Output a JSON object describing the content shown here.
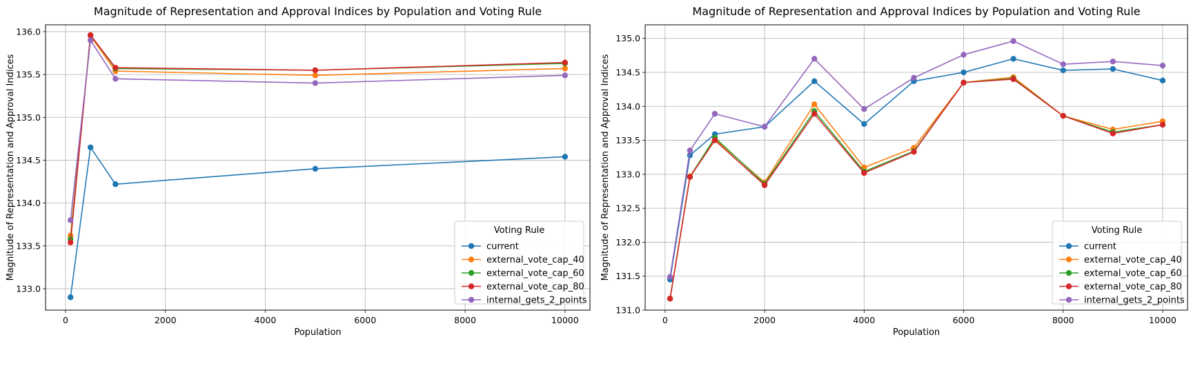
{
  "chart_data": [
    {
      "type": "line",
      "title": "Magnitude of Representation and Approval Indices by Population and Voting Rule",
      "xlabel": "Population",
      "ylabel": "Magnitude of Representation and Approval Indices",
      "xlim": [
        -400,
        10500
      ],
      "ylim": [
        132.75,
        136.08
      ],
      "xticks": [
        0,
        2000,
        4000,
        6000,
        8000,
        10000
      ],
      "yticks": [
        133.0,
        133.5,
        134.0,
        134.5,
        135.0,
        135.5,
        136.0
      ],
      "grid": true,
      "legend": {
        "title": "Voting Rule",
        "position": "lower-right"
      },
      "x": [
        100,
        500,
        1000,
        5000,
        10000
      ],
      "series": [
        {
          "name": "current",
          "color": "#1f77b4",
          "values": [
            132.9,
            134.65,
            134.22,
            134.4,
            134.54
          ]
        },
        {
          "name": "external_vote_cap_40",
          "color": "#ff7f0e",
          "values": [
            133.62,
            135.95,
            135.54,
            135.49,
            135.57
          ]
        },
        {
          "name": "external_vote_cap_60",
          "color": "#2ca02c",
          "values": [
            133.58,
            135.96,
            135.57,
            135.55,
            135.63
          ]
        },
        {
          "name": "external_vote_cap_80",
          "color": "#d62728",
          "values": [
            133.54,
            135.96,
            135.58,
            135.55,
            135.64
          ]
        },
        {
          "name": "internal_gets_2_points",
          "color": "#9467bd",
          "values": [
            133.8,
            135.9,
            135.45,
            135.4,
            135.49
          ]
        }
      ]
    },
    {
      "type": "line",
      "title": "Magnitude of Representation and Approval Indices by Population and Voting Rule",
      "xlabel": "Population",
      "ylabel": "Magnitude of Representation and Approval Indices",
      "xlim": [
        -400,
        10500
      ],
      "ylim": [
        131.0,
        135.2
      ],
      "xticks": [
        0,
        2000,
        4000,
        6000,
        8000,
        10000
      ],
      "yticks": [
        131.0,
        131.5,
        132.0,
        132.5,
        133.0,
        133.5,
        134.0,
        134.5,
        135.0
      ],
      "grid": true,
      "legend": {
        "title": "Voting Rule",
        "position": "lower-right"
      },
      "x": [
        100,
        500,
        1000,
        2000,
        3000,
        4000,
        5000,
        6000,
        7000,
        8000,
        9000,
        10000
      ],
      "series": [
        {
          "name": "current",
          "color": "#1f77b4",
          "values": [
            131.45,
            133.28,
            133.59,
            133.7,
            134.37,
            133.74,
            134.37,
            134.5,
            134.7,
            134.53,
            134.55,
            134.38
          ]
        },
        {
          "name": "external_vote_cap_40",
          "color": "#ff7f0e",
          "values": [
            131.17,
            132.97,
            133.52,
            132.88,
            134.03,
            133.1,
            133.39,
            134.35,
            134.43,
            133.86,
            133.66,
            133.78
          ]
        },
        {
          "name": "external_vote_cap_60",
          "color": "#2ca02c",
          "values": [
            131.17,
            132.96,
            133.54,
            132.86,
            133.93,
            133.04,
            133.34,
            134.35,
            134.41,
            133.86,
            133.62,
            133.73
          ]
        },
        {
          "name": "external_vote_cap_80",
          "color": "#d62728",
          "values": [
            131.17,
            132.96,
            133.5,
            132.84,
            133.89,
            133.02,
            133.33,
            134.35,
            134.4,
            133.86,
            133.6,
            133.73
          ]
        },
        {
          "name": "internal_gets_2_points",
          "color": "#9467bd",
          "values": [
            131.49,
            133.35,
            133.89,
            133.7,
            134.7,
            133.96,
            134.42,
            134.76,
            134.96,
            134.62,
            134.66,
            134.6
          ]
        }
      ]
    }
  ]
}
